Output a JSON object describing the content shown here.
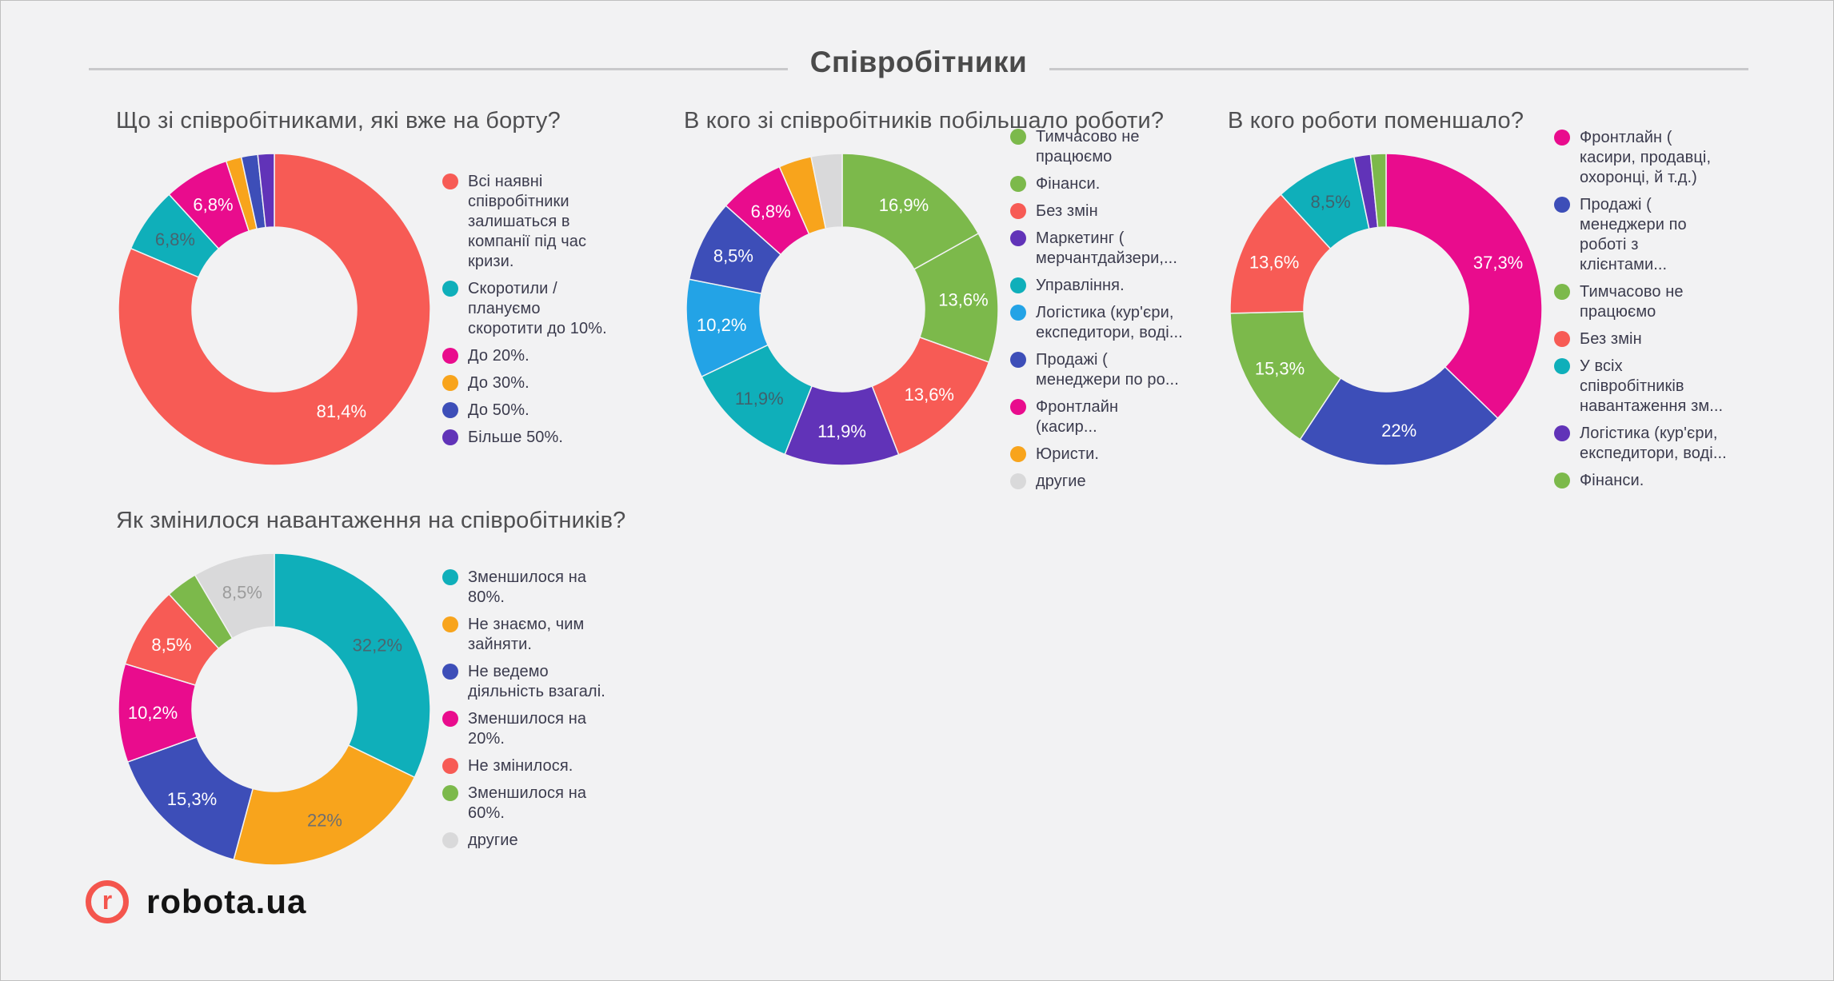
{
  "page": {
    "title": "Співробітники",
    "background": "#F2F2F3",
    "rule_color": "#C9C9CB"
  },
  "footer": {
    "logo_mark": "r",
    "logo_text": "robota.ua",
    "logo_color": "#F4554D"
  },
  "chart_data": [
    {
      "type": "pie",
      "donut": true,
      "legend_position": "right",
      "title": "Що зі співробітниками, які вже на борту?",
      "slices": [
        {
          "label": "Всі наявні співробітники залишаться в компанії під час кризи.",
          "value": 81.4,
          "pct_label": "81,4%",
          "color": "#F75B55",
          "pct_label_color": "#FFFFFF"
        },
        {
          "label": "Скоротили / плануємо скоротити до 10%.",
          "value": 6.8,
          "pct_label": "6,8%",
          "color": "#0FAFBA",
          "pct_label_color": "#47646F"
        },
        {
          "label": "До 20%.",
          "value": 6.8,
          "pct_label": "6,8%",
          "color": "#E90C8D",
          "pct_label_color": "#FFFFFF"
        },
        {
          "label": "До 30%.",
          "value": 1.6,
          "pct_label": null,
          "color": "#F8A41C",
          "pct_label_color": null
        },
        {
          "label": "До 50%.",
          "value": 1.7,
          "pct_label": null,
          "color": "#3D4EB8",
          "pct_label_color": null
        },
        {
          "label": "Більше 50%.",
          "value": 1.7,
          "pct_label": null,
          "color": "#6133B8",
          "pct_label_color": null
        }
      ]
    },
    {
      "type": "pie",
      "donut": true,
      "legend_position": "right",
      "title": "В кого зі співробітників побільшало роботи?",
      "slices": [
        {
          "label": "Тимчасово не працюємо",
          "value": 16.9,
          "pct_label": "16,9%",
          "color": "#7CB94B",
          "pct_label_color": "#FFFFFF"
        },
        {
          "label": "Фінанси.",
          "value": 13.6,
          "pct_label": "13,6%",
          "color": "#7CB94B",
          "pct_label_color": "#FFFFFF"
        },
        {
          "label": "Без змін",
          "value": 13.6,
          "pct_label": "13,6%",
          "color": "#F75B55",
          "pct_label_color": "#FFFFFF"
        },
        {
          "label": "Маркетинг ( мерчантдайзери,...",
          "value": 11.9,
          "pct_label": "11,9%",
          "color": "#6133B8",
          "pct_label_color": "#FFFFFF"
        },
        {
          "label": "Управління.",
          "value": 11.9,
          "pct_label": "11,9%",
          "color": "#0FAFBA",
          "pct_label_color": "#3F626D"
        },
        {
          "label": "Логістика (кур'єри, експедитори, воді...",
          "value": 10.2,
          "pct_label": "10,2%",
          "color": "#23A3E6",
          "pct_label_color": "#FFFFFF"
        },
        {
          "label": "Продажі ( менеджери по ро...",
          "value": 8.5,
          "pct_label": "8,5%",
          "color": "#3D4EB8",
          "pct_label_color": "#FFFFFF"
        },
        {
          "label": "Фронтлайн (касир...",
          "value": 6.8,
          "pct_label": "6,8%",
          "color": "#E90C8D",
          "pct_label_color": "#FFFFFF"
        },
        {
          "label": "Юристи.",
          "value": 3.4,
          "pct_label": null,
          "color": "#F8A41C",
          "pct_label_color": null
        },
        {
          "label": "другие",
          "value": 3.2,
          "pct_label": null,
          "color": "#D9D9DA",
          "pct_label_color": null
        }
      ]
    },
    {
      "type": "pie",
      "donut": true,
      "legend_position": "right",
      "title": "В кого роботи поменшало?",
      "slices": [
        {
          "label": "Фронтлайн ( касири, продавці, охоронці, й т.д.)",
          "value": 37.3,
          "pct_label": "37,3%",
          "color": "#E90C8D",
          "pct_label_color": "#FFFFFF"
        },
        {
          "label": "Продажі ( менеджери по роботі з клієнтами...",
          "value": 22.0,
          "pct_label": "22%",
          "color": "#3D4EB8",
          "pct_label_color": "#FFFFFF"
        },
        {
          "label": "Тимчасово не працюємо",
          "value": 15.3,
          "pct_label": "15,3%",
          "color": "#7CB94B",
          "pct_label_color": "#FFFFFF"
        },
        {
          "label": "Без змін",
          "value": 13.6,
          "pct_label": "13,6%",
          "color": "#F75B55",
          "pct_label_color": "#FFFFFF"
        },
        {
          "label": "У всіх співробітників навантаження зм...",
          "value": 8.5,
          "pct_label": "8,5%",
          "color": "#0FAFBA",
          "pct_label_color": "#3F626D"
        },
        {
          "label": "Логістика (кур'єри, експедитори, воді...",
          "value": 1.7,
          "pct_label": null,
          "color": "#6133B8",
          "pct_label_color": null
        },
        {
          "label": "Фінанси.",
          "value": 1.6,
          "pct_label": null,
          "color": "#7CB94B",
          "pct_label_color": null
        }
      ]
    },
    {
      "type": "pie",
      "donut": true,
      "legend_position": "right",
      "title": "Як змінилося навантаження на співробітників?",
      "slices": [
        {
          "label": "Зменшилося на 80%.",
          "value": 32.2,
          "pct_label": "32,2%",
          "color": "#0FAFBA",
          "pct_label_color": "#4A666F"
        },
        {
          "label": "Не знаємо, чим зайняти.",
          "value": 22.0,
          "pct_label": "22%",
          "color": "#F8A41C",
          "pct_label_color": "#6F6F6F"
        },
        {
          "label": "Не ведемо діяльність взагалі.",
          "value": 15.3,
          "pct_label": "15,3%",
          "color": "#3D4EB8",
          "pct_label_color": "#FFFFFF"
        },
        {
          "label": "Зменшилося на 20%.",
          "value": 10.2,
          "pct_label": "10,2%",
          "color": "#E90C8D",
          "pct_label_color": "#FFFFFF"
        },
        {
          "label": "Не змінилося.",
          "value": 8.5,
          "pct_label": "8,5%",
          "color": "#F75B55",
          "pct_label_color": "#FFFFFF"
        },
        {
          "label": "Зменшилося на 60%.",
          "value": 3.3,
          "pct_label": null,
          "color": "#7CB94B",
          "pct_label_color": null
        },
        {
          "label": "другие",
          "value": 8.5,
          "pct_label": "8,5%",
          "color": "#D9D9DA",
          "pct_label_color": "#9C9C9C"
        }
      ]
    }
  ]
}
